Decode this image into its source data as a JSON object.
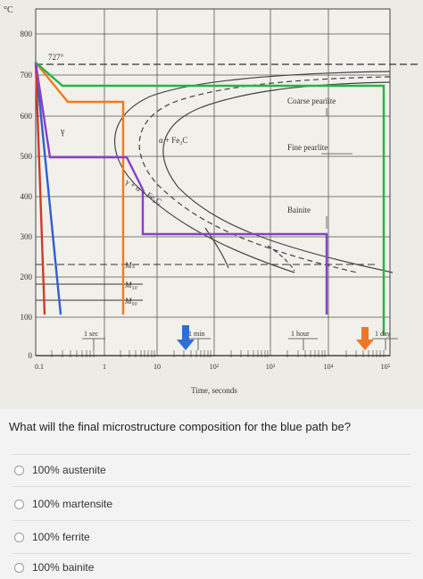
{
  "diagram": {
    "y_unit_label": "°C",
    "y_ticks": [
      "800",
      "700",
      "600",
      "500",
      "400",
      "300",
      "200",
      "100",
      "0"
    ],
    "x_ticks": [
      "0.1",
      "1",
      "10",
      "10²",
      "10³",
      "10⁴",
      "10⁵"
    ],
    "x_axis_label": "Time, seconds",
    "eutectoid_label": "727°",
    "phase_labels": {
      "gamma": "γ",
      "alpha_fe3c": "α + Fe₃C",
      "gamma_alpha_fe3c": "γ + α + Fe₃C",
      "coarse_pearlite": "Coarse pearlite",
      "fine_pearlite": "Fine pearlite",
      "bainite": "Bainite",
      "ms": "Mₛ",
      "m50": "M₅₀",
      "m90": "M₉₀"
    },
    "time_markers": [
      "1 sec",
      "1 min",
      "1 hour",
      "1 day"
    ],
    "colors": {
      "blue_path": "#2f5fd0",
      "red_path": "#d03a2a",
      "orange_path": "#f07a22",
      "purple_path": "#8a3fc8",
      "green_path": "#2bb04a",
      "blue_arrow": "#2f6fd6",
      "orange_arrow": "#f0762a"
    }
  },
  "question": {
    "text": "What will the final microstructure composition for the blue path be?",
    "options": [
      "100% austenite",
      "100% martensite",
      "100% ferrite",
      "100% bainite"
    ]
  }
}
